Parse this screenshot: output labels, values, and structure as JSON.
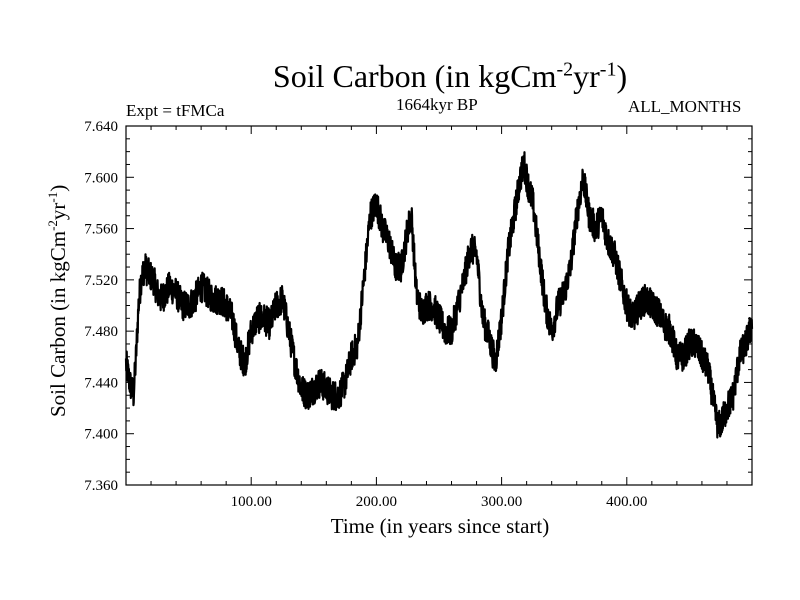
{
  "chart_data": {
    "type": "line",
    "title": "Soil Carbon (in kgCm",
    "title_sup1": "-2",
    "title_mid": "yr",
    "title_sup2": "-1",
    "title_end": ")",
    "expt_label": "Expt = tFMCa",
    "period_label": "1664kyr BP",
    "months_label": "ALL_MONTHS",
    "xlabel": "Time (in years since start)",
    "ylabel": "Soil Carbon (in kgCm",
    "ylabel_sup1": "-2",
    "ylabel_mid": "yr",
    "ylabel_sup2": "-1",
    "ylabel_end": ")",
    "xlim": [
      0,
      500
    ],
    "ylim": [
      7.36,
      7.64
    ],
    "x_ticks": [
      100,
      200,
      300,
      400
    ],
    "x_tick_labels": [
      "100.00",
      "200.00",
      "300.00",
      "400.00"
    ],
    "y_ticks": [
      7.36,
      7.4,
      7.44,
      7.48,
      7.52,
      7.56,
      7.6,
      7.64
    ],
    "y_tick_labels": [
      "7.360",
      "7.400",
      "7.440",
      "7.480",
      "7.520",
      "7.560",
      "7.600",
      "7.640"
    ],
    "series": [
      {
        "name": "Soil Carbon",
        "color": "#000000",
        "x": [
          0,
          3,
          6,
          8,
          10,
          12,
          15,
          18,
          22,
          25,
          28,
          32,
          35,
          40,
          45,
          50,
          55,
          60,
          65,
          70,
          75,
          80,
          85,
          90,
          95,
          100,
          105,
          110,
          115,
          120,
          125,
          130,
          135,
          140,
          145,
          150,
          155,
          160,
          165,
          170,
          175,
          180,
          185,
          190,
          195,
          200,
          205,
          210,
          215,
          220,
          225,
          228,
          232,
          236,
          240,
          245,
          250,
          255,
          260,
          265,
          270,
          275,
          280,
          285,
          290,
          295,
          300,
          305,
          310,
          315,
          318,
          322,
          325,
          330,
          335,
          340,
          345,
          350,
          355,
          360,
          365,
          370,
          375,
          380,
          385,
          390,
          395,
          400,
          405,
          410,
          415,
          420,
          425,
          430,
          435,
          440,
          445,
          450,
          455,
          460,
          465,
          470,
          473,
          476,
          480,
          485,
          490,
          495,
          500
        ],
        "values": [
          7.455,
          7.44,
          7.43,
          7.46,
          7.5,
          7.52,
          7.53,
          7.525,
          7.52,
          7.51,
          7.505,
          7.51,
          7.515,
          7.51,
          7.5,
          7.5,
          7.505,
          7.515,
          7.51,
          7.505,
          7.505,
          7.5,
          7.49,
          7.465,
          7.455,
          7.48,
          7.49,
          7.49,
          7.485,
          7.5,
          7.505,
          7.48,
          7.455,
          7.435,
          7.43,
          7.435,
          7.44,
          7.435,
          7.43,
          7.43,
          7.44,
          7.46,
          7.47,
          7.52,
          7.57,
          7.58,
          7.56,
          7.55,
          7.53,
          7.53,
          7.56,
          7.57,
          7.51,
          7.495,
          7.5,
          7.5,
          7.49,
          7.48,
          7.48,
          7.5,
          7.52,
          7.545,
          7.54,
          7.49,
          7.475,
          7.455,
          7.49,
          7.54,
          7.57,
          7.6,
          7.61,
          7.59,
          7.58,
          7.54,
          7.5,
          7.48,
          7.5,
          7.51,
          7.53,
          7.57,
          7.6,
          7.57,
          7.56,
          7.57,
          7.55,
          7.54,
          7.52,
          7.5,
          7.49,
          7.5,
          7.505,
          7.5,
          7.495,
          7.485,
          7.48,
          7.46,
          7.46,
          7.47,
          7.47,
          7.46,
          7.45,
          7.42,
          7.405,
          7.41,
          7.42,
          7.43,
          7.46,
          7.47,
          7.485
        ]
      }
    ]
  }
}
